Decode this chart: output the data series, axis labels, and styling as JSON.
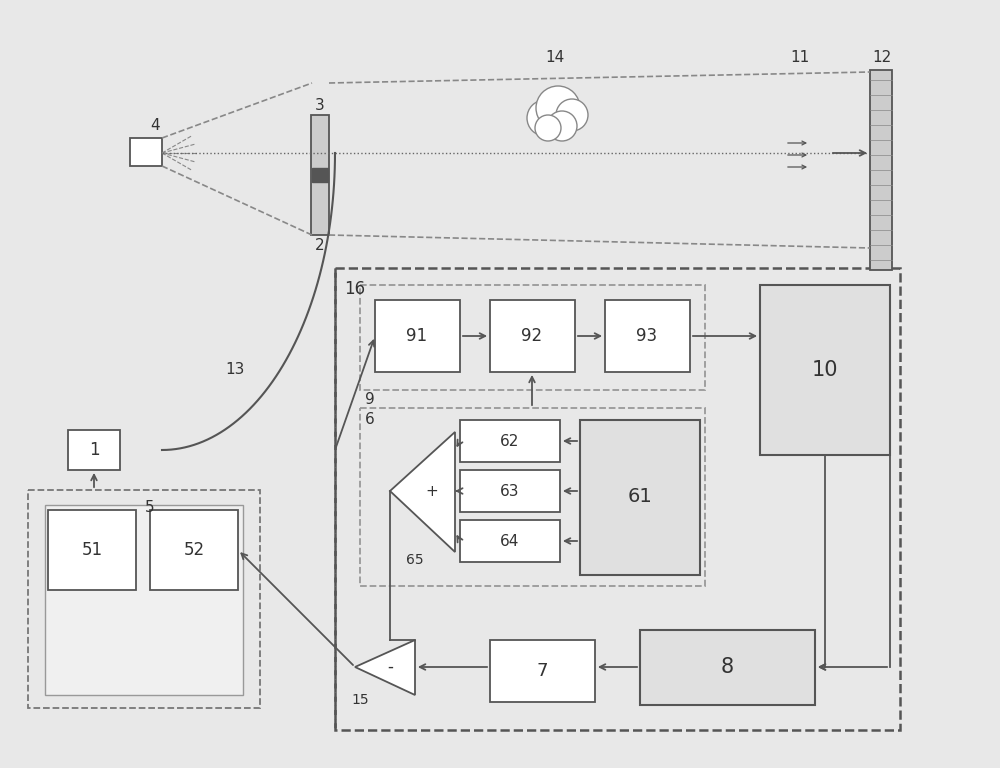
{
  "bg_color": "#e8e8e8",
  "box_fc": "#ffffff",
  "box_ec": "#555555",
  "gray_fc": "#d8d8d8",
  "arrow_color": "#555555",
  "dashed_ec": "#777777",
  "figsize": [
    10.0,
    7.68
  ],
  "dpi": 100
}
